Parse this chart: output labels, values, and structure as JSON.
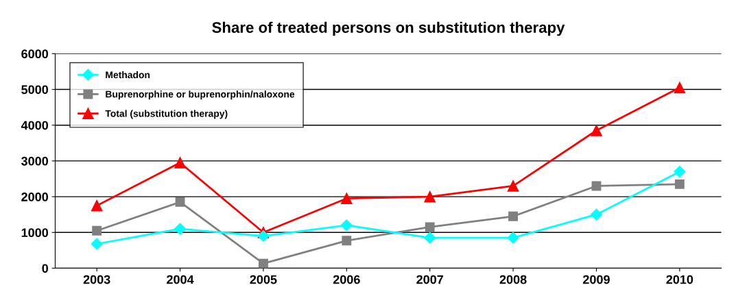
{
  "chart_data": {
    "type": "line",
    "title": "Share of treated persons on substitution therapy",
    "categories": [
      "2003",
      "2004",
      "2005",
      "2006",
      "2007",
      "2008",
      "2009",
      "2010"
    ],
    "series": [
      {
        "name": "Methadon",
        "color": "#00ffff",
        "marker": "diamond",
        "values": [
          680,
          1100,
          900,
          1200,
          850,
          850,
          1500,
          2700
        ]
      },
      {
        "name": "Buprenorphine or buprenorphin/naloxone",
        "color": "#808080",
        "marker": "square",
        "values": [
          1050,
          1850,
          130,
          770,
          1150,
          1450,
          2300,
          2350
        ]
      },
      {
        "name": "Total (substitution therapy)",
        "color": "#ff0000",
        "marker": "triangle",
        "values": [
          1750,
          2950,
          1000,
          1950,
          2000,
          2300,
          3850,
          5050
        ]
      }
    ],
    "ylim": [
      0,
      6000
    ],
    "yticks": [
      0,
      1000,
      2000,
      3000,
      4000,
      5000,
      6000
    ],
    "grid": "y",
    "legend": "top left",
    "line_style": "solid"
  }
}
